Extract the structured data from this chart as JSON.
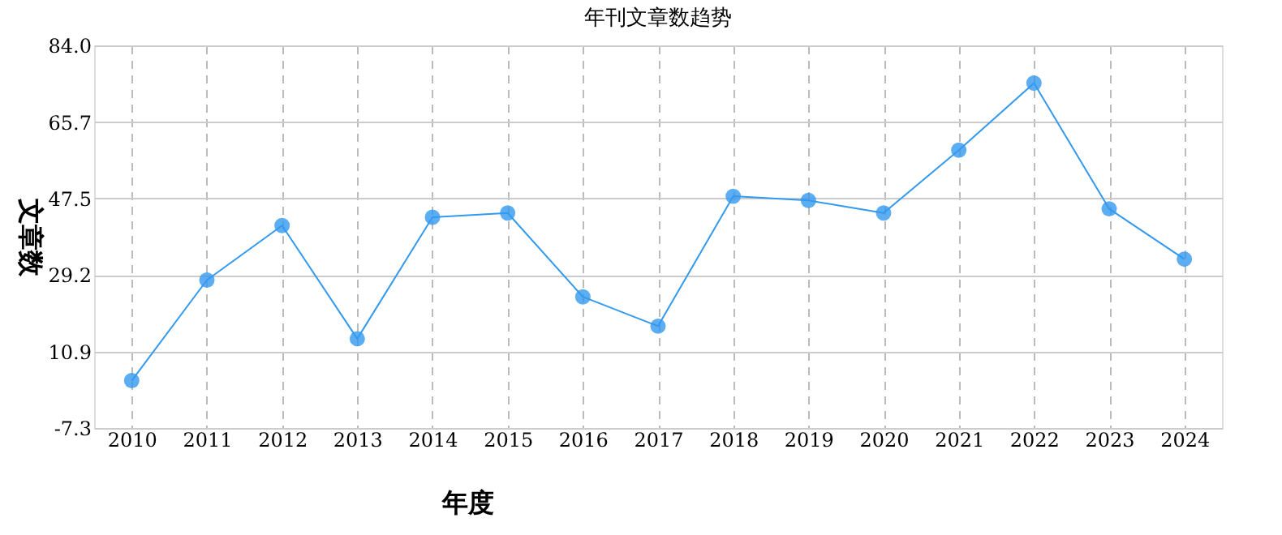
{
  "chart_data": {
    "type": "line",
    "title": "年刊文章数趋势",
    "xlabel": "年度",
    "ylabel": "文章数",
    "categories": [
      "2010",
      "2011",
      "2012",
      "2013",
      "2014",
      "2015",
      "2016",
      "2017",
      "2018",
      "2019",
      "2020",
      "2021",
      "2022",
      "2023",
      "2024"
    ],
    "series": [
      {
        "color": "#3399ee",
        "values": [
          4,
          28,
          41,
          14,
          43,
          44,
          24,
          17,
          48,
          47,
          44,
          59,
          75,
          45,
          33
        ]
      }
    ],
    "ylim": [
      -7.3,
      84.0
    ],
    "yticks": [
      {
        "value": -7.3,
        "label": "-7.3"
      },
      {
        "value": 10.9,
        "label": "10.9"
      },
      {
        "value": 29.2,
        "label": "29.2"
      },
      {
        "value": 47.5,
        "label": "47.5"
      },
      {
        "value": 65.7,
        "label": "65.7"
      },
      {
        "value": 84,
        "label": "84.0"
      }
    ],
    "grid": true,
    "marker": "circle",
    "line_style": "solid"
  }
}
